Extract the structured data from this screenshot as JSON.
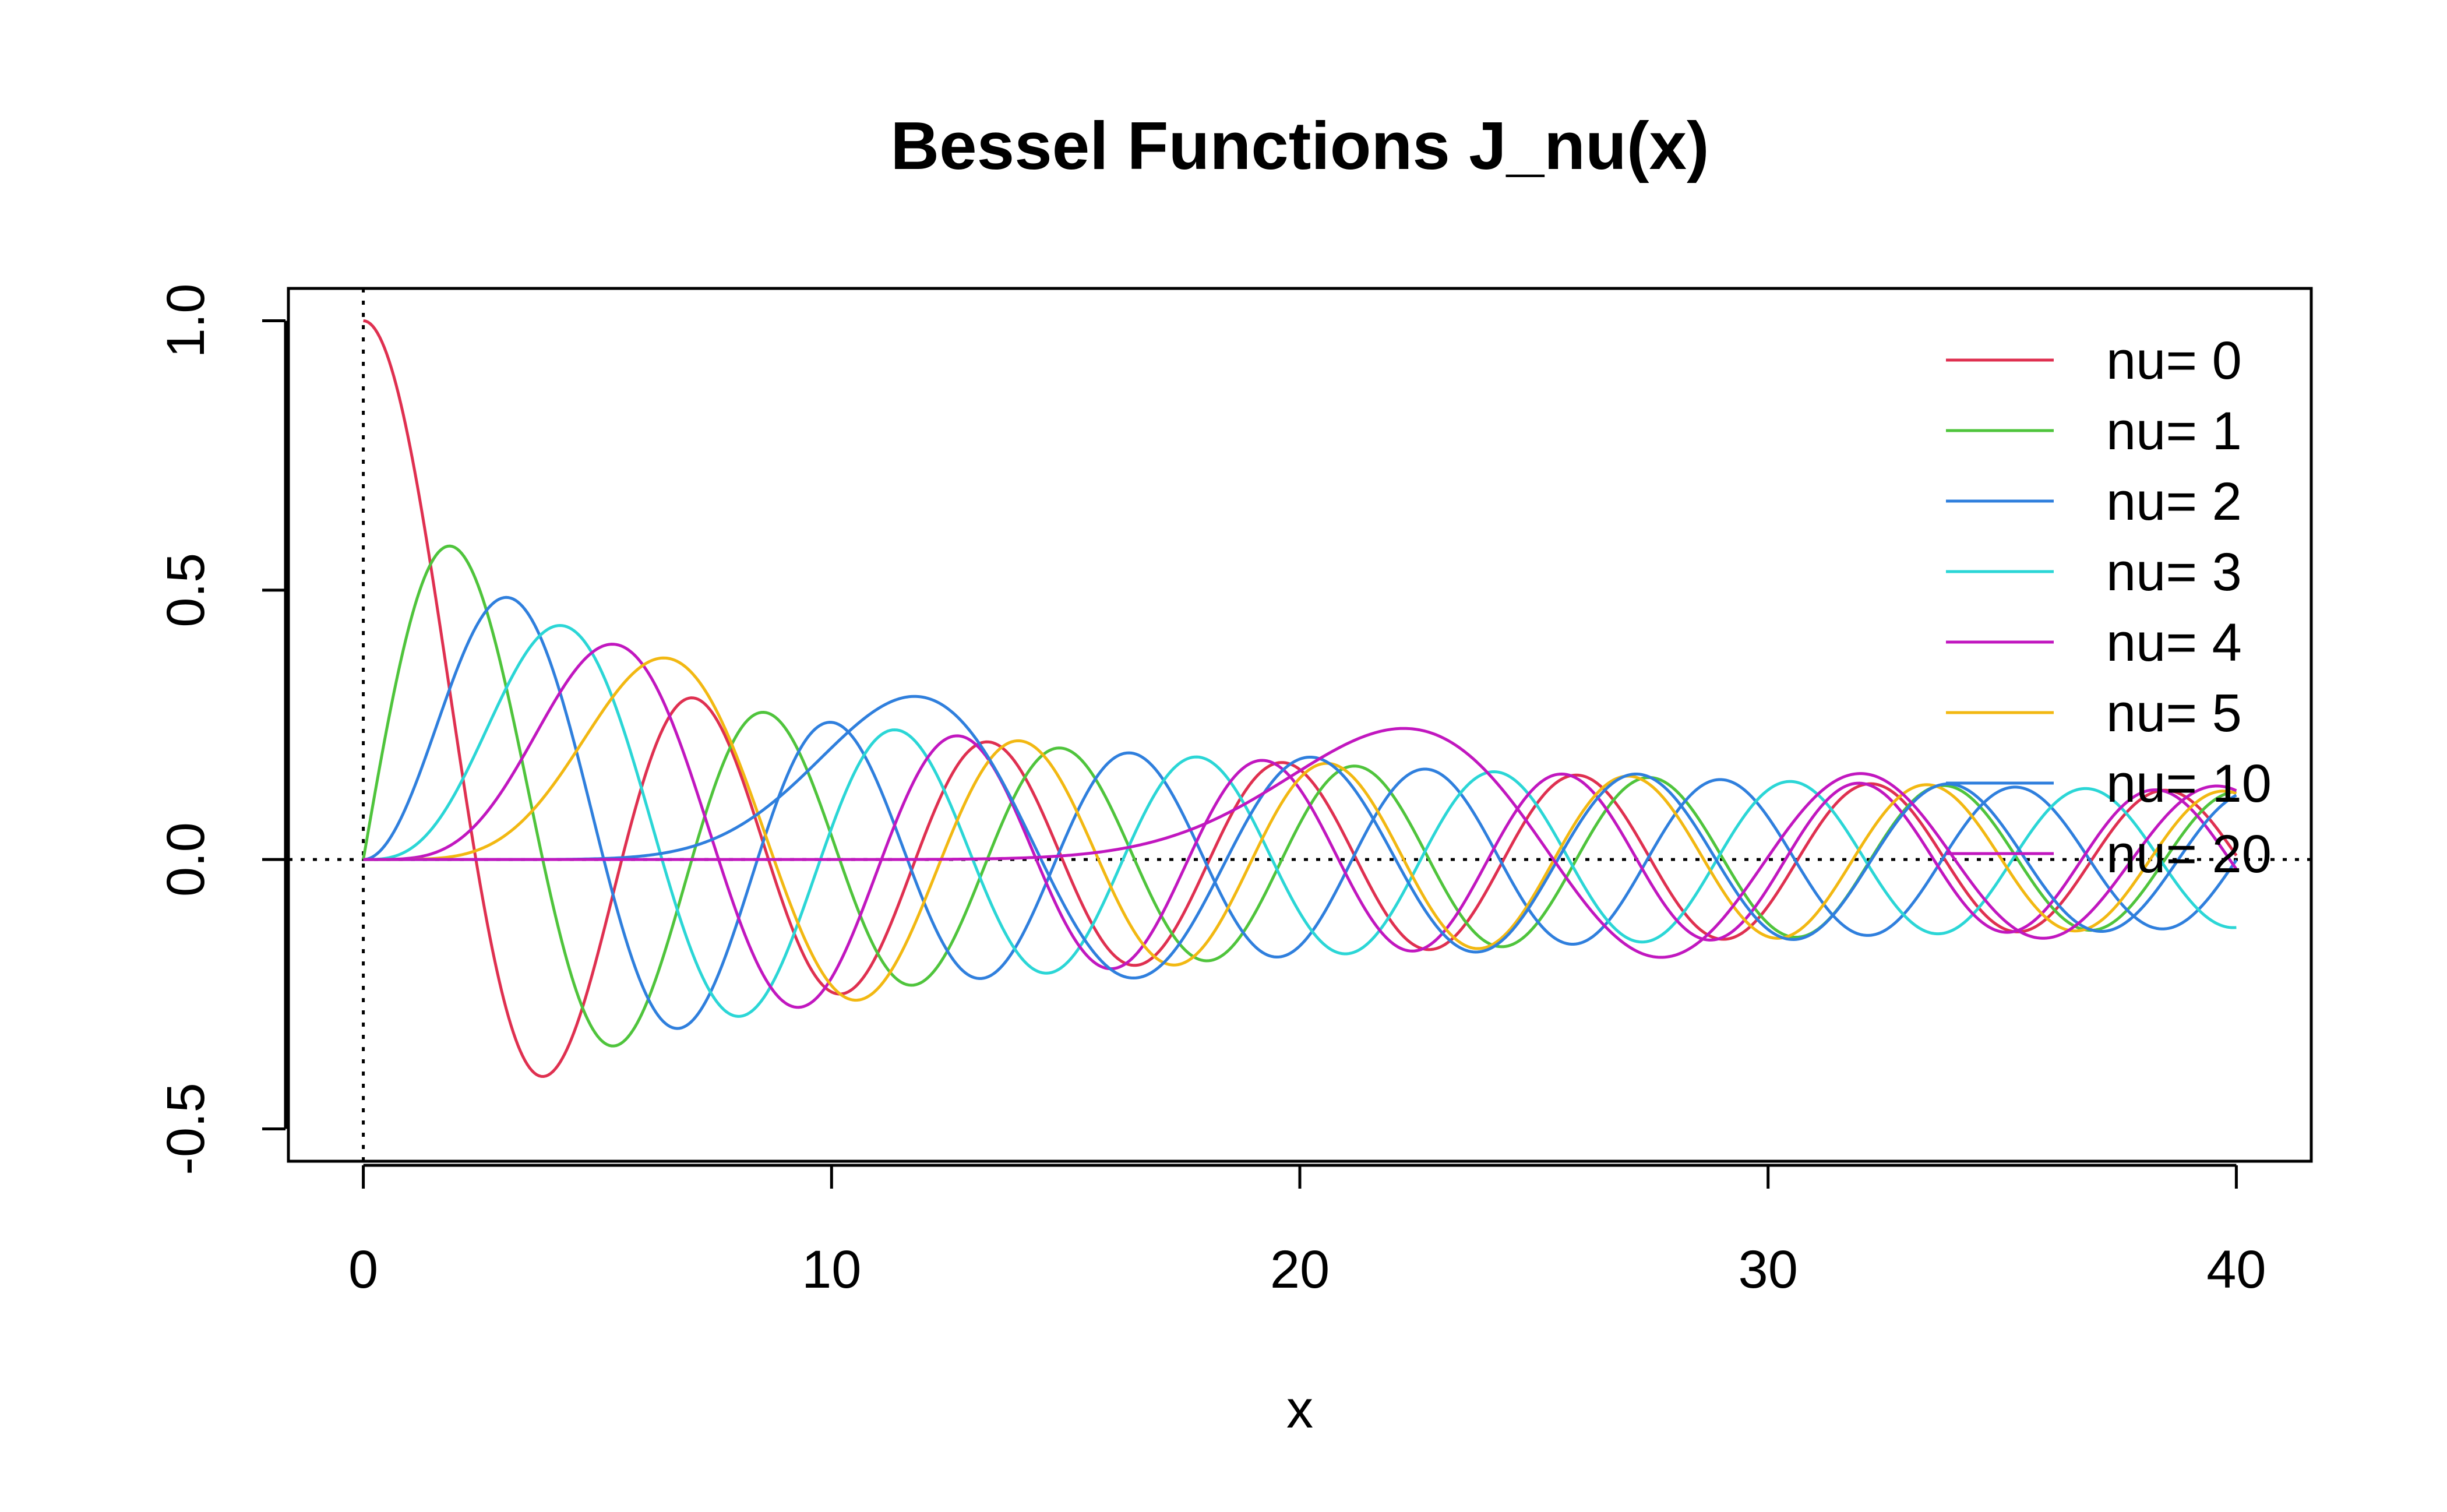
{
  "chart_data": {
    "type": "line",
    "title": "Bessel Functions  J_nu(x)",
    "xlabel": "x",
    "ylabel": "",
    "xlim": [
      -1.6,
      41.6
    ],
    "ylim": [
      -0.56,
      1.06
    ],
    "x_range": [
      0,
      40
    ],
    "x_ticks": [
      0,
      10,
      20,
      30,
      40
    ],
    "x_tick_labels": [
      "0",
      "10",
      "20",
      "30",
      "40"
    ],
    "y_ticks": [
      -0.5,
      0.0,
      0.5,
      1.0
    ],
    "y_tick_labels": [
      "-0.5",
      "0.0",
      "0.5",
      "1.0"
    ],
    "reference_lines": [
      {
        "orientation": "horizontal",
        "value": 0,
        "style": "dotted"
      },
      {
        "orientation": "vertical",
        "value": 0,
        "style": "dotted"
      }
    ],
    "legend_position": "top-right",
    "grid": false,
    "function": "Bessel function of the first kind J_nu(x)",
    "series": [
      {
        "nu": 0,
        "name": "nu= 0",
        "color": "#DF3050"
      },
      {
        "nu": 1,
        "name": "nu= 1",
        "color": "#4FC43C"
      },
      {
        "nu": 2,
        "name": "nu= 2",
        "color": "#2F7FDD"
      },
      {
        "nu": 3,
        "name": "nu= 3",
        "color": "#2BD6D6"
      },
      {
        "nu": 4,
        "name": "nu= 4",
        "color": "#C117BF"
      },
      {
        "nu": 5,
        "name": "nu= 5",
        "color": "#F2B812"
      },
      {
        "nu": 10,
        "name": "nu= 10",
        "color": "#2F7FDD"
      },
      {
        "nu": 20,
        "name": "nu= 20",
        "color": "#C117BF"
      }
    ]
  }
}
